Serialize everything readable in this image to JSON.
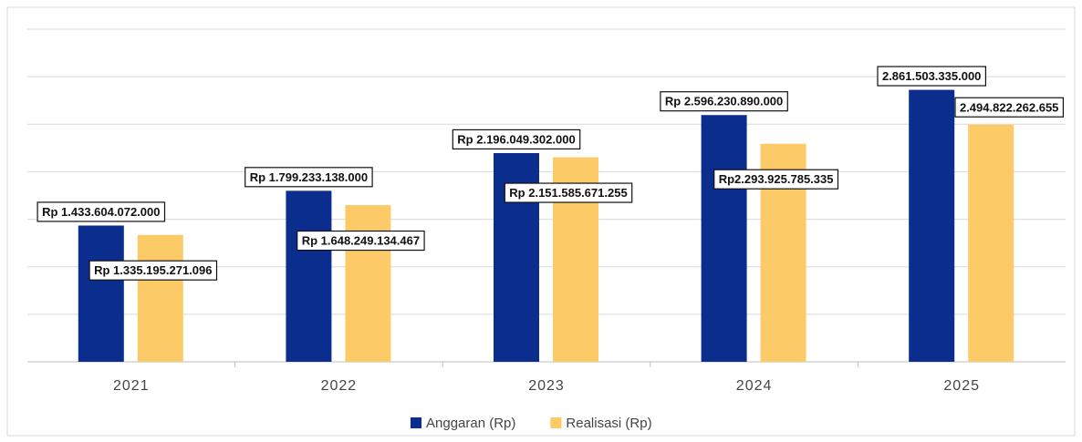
{
  "chart_data": {
    "type": "bar",
    "categories": [
      "2021",
      "2022",
      "2023",
      "2024",
      "2025"
    ],
    "series": [
      {
        "name": "Anggaran (Rp)",
        "color": "#0b2e8e",
        "values": [
          1433604072000,
          1799233138000,
          2196049302000,
          2596230890000,
          2861503335000
        ],
        "value_labels": [
          "Rp 1.433.604.072.000",
          "Rp 1.799.233.138.000",
          "Rp 2.196.049.302.000",
          "Rp 2.596.230.890.000",
          "2.861.503.335.000"
        ]
      },
      {
        "name": "Realisasi (Rp)",
        "color": "#fdca68",
        "values": [
          1335195271096,
          1648249134467,
          2151585671255,
          2293925785335,
          2494822262655
        ],
        "value_labels": [
          "Rp 1.335.195.271.096",
          "Rp 1.648.249.134.467",
          "Rp 2.151.585.671.255",
          "Rp2.293.925.785.335",
          "2.494.822.262.655"
        ]
      }
    ],
    "ylim": [
      0,
      3500000000000
    ],
    "yticks": [
      0,
      500000000000,
      1000000000000,
      1500000000000,
      2000000000000,
      2500000000000,
      3000000000000,
      3500000000000
    ],
    "grid": true,
    "legend": "bottom"
  }
}
